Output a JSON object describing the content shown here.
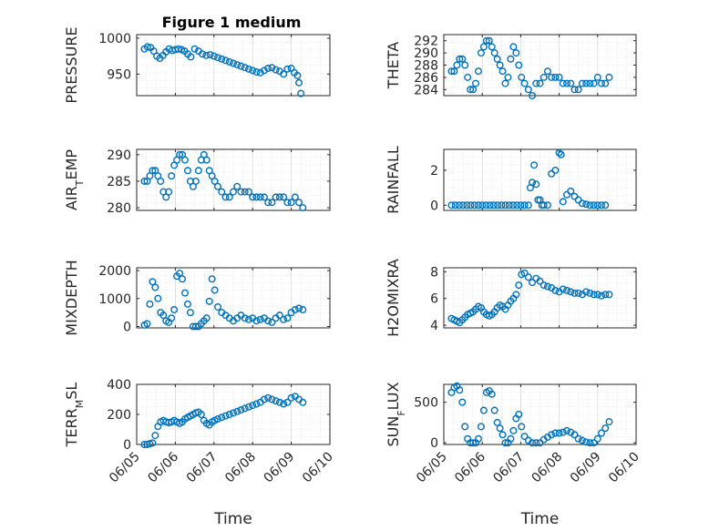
{
  "figure": {
    "title": "Figure 1 medium",
    "marker_color": "#0072bd",
    "axis_color": "#262626",
    "grid_color": "#d9d9d9",
    "marker": "open-circle"
  },
  "chart_data": [
    {
      "id": "pressure",
      "type": "scatter",
      "title": "Figure 1 medium",
      "ylabel": "PRESSURE",
      "xlabel": "",
      "xlim": [
        0,
        5
      ],
      "ylim": [
        920,
        1005
      ],
      "xticks": [
        0,
        1,
        2,
        3,
        4,
        5
      ],
      "xticklabels": [],
      "yticks": [
        950,
        1000
      ],
      "yticklabels": [
        "950",
        "1000"
      ],
      "grid": true,
      "x": [
        0.2,
        0.28,
        0.36,
        0.44,
        0.52,
        0.6,
        0.68,
        0.76,
        0.84,
        0.92,
        1.0,
        1.08,
        1.16,
        1.24,
        1.32,
        1.4,
        1.5,
        1.6,
        1.7,
        1.8,
        1.9,
        2.0,
        2.1,
        2.2,
        2.3,
        2.4,
        2.5,
        2.6,
        2.7,
        2.8,
        2.9,
        3.0,
        3.1,
        3.2,
        3.3,
        3.4,
        3.5,
        3.6,
        3.7,
        3.8,
        3.9,
        4.0,
        4.08,
        4.16,
        4.2,
        4.25
      ],
      "y": [
        985,
        988,
        987,
        982,
        975,
        972,
        976,
        981,
        985,
        983,
        984,
        985,
        984,
        982,
        978,
        974,
        985,
        982,
        978,
        976,
        977,
        975,
        973,
        971,
        969,
        967,
        965,
        963,
        961,
        959,
        957,
        955,
        953,
        952,
        955,
        958,
        959,
        956,
        954,
        950,
        957,
        958,
        952,
        948,
        938,
        923
      ]
    },
    {
      "id": "theta",
      "type": "scatter",
      "ylabel": "THETA",
      "xlabel": "",
      "xlim": [
        0,
        5
      ],
      "ylim": [
        283,
        293
      ],
      "xticks": [
        0,
        1,
        2,
        3,
        4,
        5
      ],
      "xticklabels": [],
      "yticks": [
        284,
        286,
        288,
        290,
        292
      ],
      "yticklabels": [
        "284",
        "286",
        "288",
        "290",
        "292"
      ],
      "grid": true,
      "x": [
        0.2,
        0.27,
        0.34,
        0.41,
        0.48,
        0.55,
        0.62,
        0.69,
        0.76,
        0.83,
        0.9,
        0.97,
        1.04,
        1.11,
        1.18,
        1.25,
        1.32,
        1.39,
        1.46,
        1.53,
        1.6,
        1.67,
        1.74,
        1.81,
        1.88,
        1.95,
        2.02,
        2.1,
        2.2,
        2.3,
        2.4,
        2.5,
        2.6,
        2.7,
        2.8,
        2.9,
        3.0,
        3.1,
        3.2,
        3.3,
        3.4,
        3.5,
        3.6,
        3.7,
        3.8,
        3.9,
        4.0,
        4.1,
        4.2,
        4.3
      ],
      "y": [
        287,
        287,
        288,
        289,
        289,
        288,
        286,
        284,
        284,
        285,
        287,
        290,
        291,
        292,
        292,
        291,
        290,
        289,
        288,
        287,
        285,
        286,
        289,
        291,
        290,
        288,
        286,
        285,
        284,
        283,
        285,
        285,
        286,
        287,
        286,
        286,
        286,
        285,
        285,
        285,
        284,
        284,
        285,
        285,
        285,
        285,
        286,
        285,
        285,
        286
      ]
    },
    {
      "id": "air_temp",
      "type": "scatter",
      "ylabel": "AIR_TEMP",
      "xlabel": "",
      "xlim": [
        0,
        5
      ],
      "ylim": [
        279.5,
        291
      ],
      "xticks": [
        0,
        1,
        2,
        3,
        4,
        5
      ],
      "xticklabels": [],
      "yticks": [
        280,
        285,
        290
      ],
      "yticklabels": [
        "280",
        "285",
        "290"
      ],
      "grid": true,
      "x": [
        0.2,
        0.27,
        0.34,
        0.41,
        0.48,
        0.55,
        0.62,
        0.69,
        0.76,
        0.83,
        0.9,
        0.97,
        1.04,
        1.11,
        1.18,
        1.25,
        1.32,
        1.39,
        1.46,
        1.53,
        1.6,
        1.67,
        1.74,
        1.81,
        1.88,
        1.95,
        2.02,
        2.1,
        2.2,
        2.3,
        2.4,
        2.5,
        2.6,
        2.7,
        2.8,
        2.9,
        3.0,
        3.1,
        3.2,
        3.3,
        3.4,
        3.5,
        3.6,
        3.7,
        3.8,
        3.9,
        4.0,
        4.1,
        4.2,
        4.3
      ],
      "y": [
        285,
        285,
        286,
        287,
        287,
        286,
        285,
        283,
        282,
        283,
        286,
        288,
        289,
        290,
        290,
        289,
        287,
        285,
        284,
        285,
        287,
        289,
        290,
        289,
        287,
        286,
        285,
        284,
        283,
        282,
        282,
        283,
        284,
        283,
        283,
        283,
        282,
        282,
        282,
        282,
        281,
        281,
        282,
        282,
        282,
        281,
        281,
        282,
        281,
        280
      ]
    },
    {
      "id": "rainfall",
      "type": "scatter",
      "ylabel": "RAINFALL",
      "xlabel": "",
      "xlim": [
        0,
        5
      ],
      "ylim": [
        -0.3,
        3.2
      ],
      "xticks": [
        0,
        1,
        2,
        3,
        4,
        5
      ],
      "xticklabels": [],
      "yticks": [
        0,
        2
      ],
      "yticklabels": [
        "0",
        "2"
      ],
      "grid": true,
      "x": [
        0.2,
        0.3,
        0.4,
        0.5,
        0.6,
        0.7,
        0.8,
        0.9,
        1.0,
        1.1,
        1.2,
        1.3,
        1.4,
        1.5,
        1.6,
        1.7,
        1.8,
        1.9,
        2.0,
        2.1,
        2.2,
        2.25,
        2.3,
        2.35,
        2.4,
        2.45,
        2.5,
        2.55,
        2.6,
        2.7,
        2.8,
        2.9,
        3.0,
        3.05,
        3.1,
        3.2,
        3.3,
        3.4,
        3.5,
        3.6,
        3.7,
        3.8,
        3.9,
        4.0,
        4.1,
        4.2
      ],
      "y": [
        0,
        0,
        0,
        0,
        0,
        0,
        0,
        0,
        0,
        0,
        0,
        0,
        0,
        0,
        0,
        0,
        0,
        0,
        0,
        0,
        0,
        1.0,
        1.3,
        2.3,
        1.2,
        0.3,
        0.3,
        0,
        0,
        0,
        1.8,
        2.0,
        3.0,
        2.9,
        0.2,
        0.6,
        0.8,
        0.5,
        0.3,
        0.1,
        0.05,
        0,
        0,
        0,
        0,
        0
      ]
    },
    {
      "id": "mixdepth",
      "type": "scatter",
      "ylabel": "MIXDEPTH",
      "xlabel": "",
      "xlim": [
        0,
        5
      ],
      "ylim": [
        -50,
        2100
      ],
      "xticks": [
        0,
        1,
        2,
        3,
        4,
        5
      ],
      "xticklabels": [],
      "yticks": [
        0,
        1000,
        2000
      ],
      "yticklabels": [
        "0",
        "1000",
        "2000"
      ],
      "grid": true,
      "x": [
        0.2,
        0.27,
        0.34,
        0.41,
        0.48,
        0.55,
        0.62,
        0.69,
        0.76,
        0.83,
        0.9,
        0.97,
        1.04,
        1.11,
        1.18,
        1.25,
        1.32,
        1.39,
        1.46,
        1.53,
        1.6,
        1.67,
        1.74,
        1.81,
        1.88,
        1.95,
        2.02,
        2.1,
        2.2,
        2.3,
        2.4,
        2.5,
        2.6,
        2.7,
        2.8,
        2.9,
        3.0,
        3.1,
        3.2,
        3.3,
        3.4,
        3.5,
        3.6,
        3.7,
        3.8,
        3.9,
        4.0,
        4.1,
        4.2,
        4.3
      ],
      "y": [
        50,
        100,
        800,
        1600,
        1400,
        1000,
        500,
        400,
        200,
        150,
        300,
        600,
        1800,
        1900,
        1700,
        1200,
        800,
        500,
        0,
        0,
        0,
        100,
        200,
        300,
        900,
        1700,
        1300,
        700,
        500,
        400,
        300,
        200,
        300,
        400,
        300,
        250,
        300,
        200,
        250,
        300,
        200,
        150,
        300,
        400,
        250,
        300,
        500,
        600,
        650,
        600
      ]
    },
    {
      "id": "h2omixra",
      "type": "scatter",
      "ylabel": "H2OMIXRA",
      "xlabel": "",
      "xlim": [
        0,
        5
      ],
      "ylim": [
        3.8,
        8.3
      ],
      "xticks": [
        0,
        1,
        2,
        3,
        4,
        5
      ],
      "xticklabels": [],
      "yticks": [
        4,
        6,
        8
      ],
      "yticklabels": [
        "4",
        "6",
        "8"
      ],
      "grid": true,
      "x": [
        0.2,
        0.27,
        0.34,
        0.41,
        0.48,
        0.55,
        0.62,
        0.69,
        0.76,
        0.83,
        0.9,
        0.97,
        1.04,
        1.11,
        1.18,
        1.25,
        1.32,
        1.39,
        1.46,
        1.53,
        1.6,
        1.67,
        1.74,
        1.81,
        1.88,
        1.95,
        2.02,
        2.1,
        2.2,
        2.3,
        2.4,
        2.5,
        2.6,
        2.7,
        2.8,
        2.9,
        3.0,
        3.1,
        3.2,
        3.3,
        3.4,
        3.5,
        3.6,
        3.7,
        3.8,
        3.9,
        4.0,
        4.1,
        4.2,
        4.3
      ],
      "y": [
        4.5,
        4.4,
        4.3,
        4.2,
        4.4,
        4.6,
        4.8,
        4.9,
        5.0,
        5.2,
        5.4,
        5.3,
        5.0,
        4.8,
        4.7,
        4.8,
        5.0,
        5.3,
        5.5,
        5.4,
        5.2,
        5.5,
        5.8,
        6.0,
        6.3,
        7.0,
        7.8,
        7.9,
        7.6,
        7.2,
        7.5,
        7.3,
        7.0,
        6.9,
        6.8,
        6.6,
        6.5,
        6.7,
        6.6,
        6.5,
        6.4,
        6.4,
        6.3,
        6.5,
        6.4,
        6.3,
        6.3,
        6.2,
        6.3,
        6.3
      ]
    },
    {
      "id": "terr_msl",
      "type": "scatter",
      "ylabel": "TERR_MSL",
      "xlabel": "Time",
      "xlim": [
        0,
        5
      ],
      "ylim": [
        0,
        400
      ],
      "xticks": [
        0,
        1,
        2,
        3,
        4,
        5
      ],
      "xticklabels": [
        "06/05",
        "06/06",
        "06/07",
        "06/08",
        "06/09",
        "06/10"
      ],
      "yticks": [
        0,
        200,
        400
      ],
      "yticklabels": [
        "0",
        "200",
        "400"
      ],
      "grid": true,
      "x": [
        0.2,
        0.27,
        0.34,
        0.41,
        0.48,
        0.55,
        0.62,
        0.69,
        0.76,
        0.83,
        0.9,
        0.97,
        1.04,
        1.11,
        1.18,
        1.25,
        1.32,
        1.39,
        1.46,
        1.53,
        1.6,
        1.67,
        1.74,
        1.81,
        1.88,
        1.95,
        2.02,
        2.1,
        2.2,
        2.3,
        2.4,
        2.5,
        2.6,
        2.7,
        2.8,
        2.9,
        3.0,
        3.1,
        3.2,
        3.3,
        3.4,
        3.5,
        3.6,
        3.7,
        3.8,
        3.9,
        4.0,
        4.1,
        4.2,
        4.3
      ],
      "y": [
        0,
        0,
        5,
        10,
        60,
        120,
        150,
        160,
        150,
        145,
        150,
        160,
        150,
        140,
        150,
        170,
        180,
        190,
        200,
        210,
        215,
        200,
        160,
        140,
        130,
        150,
        160,
        170,
        180,
        190,
        200,
        210,
        220,
        230,
        240,
        250,
        260,
        270,
        280,
        300,
        310,
        300,
        290,
        280,
        270,
        280,
        310,
        320,
        300,
        280
      ]
    },
    {
      "id": "sun_flux",
      "type": "scatter",
      "ylabel": "SUN_FLUX",
      "xlabel": "Time",
      "xlim": [
        0,
        5
      ],
      "ylim": [
        -20,
        720
      ],
      "xticks": [
        0,
        1,
        2,
        3,
        4,
        5
      ],
      "xticklabels": [
        "06/05",
        "06/06",
        "06/07",
        "06/08",
        "06/09",
        "06/10"
      ],
      "yticks": [
        0,
        500
      ],
      "yticklabels": [
        "0",
        "500"
      ],
      "grid": true,
      "x": [
        0.2,
        0.27,
        0.34,
        0.41,
        0.48,
        0.55,
        0.62,
        0.69,
        0.76,
        0.83,
        0.9,
        0.97,
        1.04,
        1.11,
        1.18,
        1.25,
        1.32,
        1.39,
        1.46,
        1.53,
        1.6,
        1.67,
        1.74,
        1.81,
        1.88,
        1.95,
        2.02,
        2.1,
        2.2,
        2.3,
        2.4,
        2.5,
        2.6,
        2.7,
        2.8,
        2.9,
        3.0,
        3.1,
        3.2,
        3.3,
        3.4,
        3.5,
        3.6,
        3.7,
        3.8,
        3.9,
        4.0,
        4.1,
        4.2,
        4.3
      ],
      "y": [
        620,
        680,
        700,
        650,
        500,
        200,
        50,
        0,
        0,
        0,
        50,
        200,
        400,
        620,
        640,
        600,
        400,
        250,
        180,
        100,
        0,
        0,
        50,
        150,
        300,
        350,
        200,
        80,
        30,
        0,
        0,
        0,
        40,
        70,
        100,
        120,
        120,
        130,
        150,
        130,
        100,
        50,
        30,
        10,
        0,
        0,
        50,
        120,
        180,
        260
      ]
    }
  ]
}
